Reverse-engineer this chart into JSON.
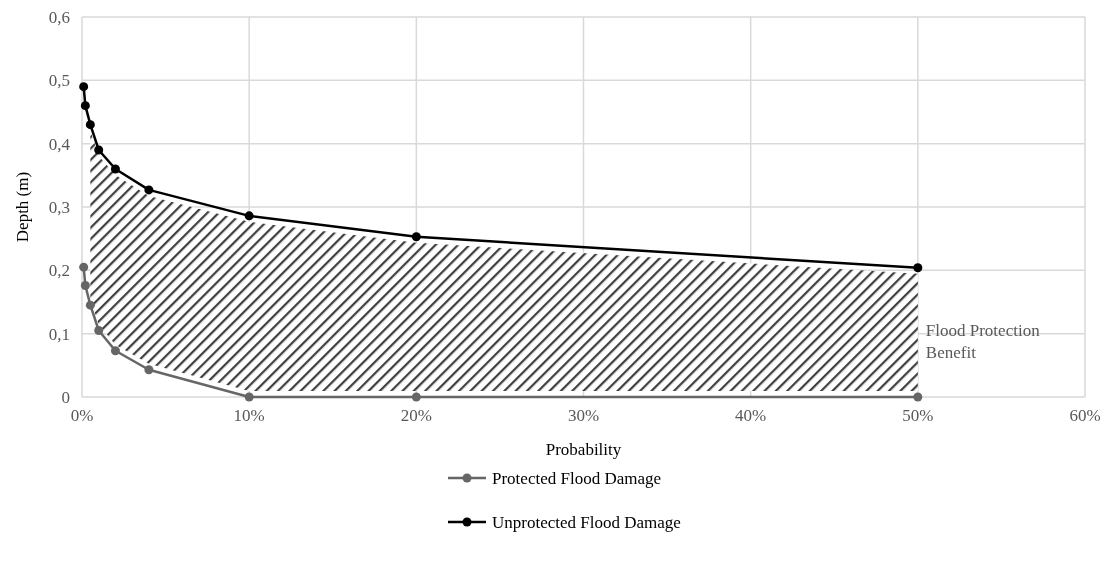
{
  "chart_data": {
    "type": "line",
    "xlabel": "Probability",
    "ylabel": "Depth (m)",
    "x": [
      0.1,
      0.2,
      0.5,
      1,
      2,
      4,
      10,
      20,
      50
    ],
    "series": [
      {
        "name": "Protected Flood Damage",
        "color": "#666666",
        "values": [
          0.205,
          0.176,
          0.145,
          0.105,
          0.073,
          0.043,
          0,
          0,
          0
        ]
      },
      {
        "name": "Unprotected Flood Damage",
        "color": "#000000",
        "values": [
          0.49,
          0.46,
          0.43,
          0.39,
          0.36,
          0.327,
          0.286,
          0.253,
          0.204
        ]
      }
    ],
    "xlim": [
      0,
      60
    ],
    "xticks": [
      {
        "value": 0,
        "label": "0%"
      },
      {
        "value": 10,
        "label": "10%"
      },
      {
        "value": 20,
        "label": "20%"
      },
      {
        "value": 30,
        "label": "30%"
      },
      {
        "value": 40,
        "label": "40%"
      },
      {
        "value": 50,
        "label": "50%"
      },
      {
        "value": 60,
        "label": "60%"
      }
    ],
    "ylim": [
      0,
      0.6
    ],
    "yticks": [
      0,
      {
        "value": 0.1,
        "label": "0,1"
      },
      {
        "value": 0.2,
        "label": "0,2"
      },
      {
        "value": 0.3,
        "label": "0,3"
      },
      {
        "value": 0.4,
        "label": "0,4"
      },
      {
        "value": 0.5,
        "label": "0,5"
      },
      {
        "value": 0.6,
        "label": "0,6"
      }
    ],
    "annotations": [
      "Flood Protection Benefit"
    ],
    "grid": true,
    "legend": "bottom",
    "marker": "circle",
    "line_style": "solid"
  }
}
